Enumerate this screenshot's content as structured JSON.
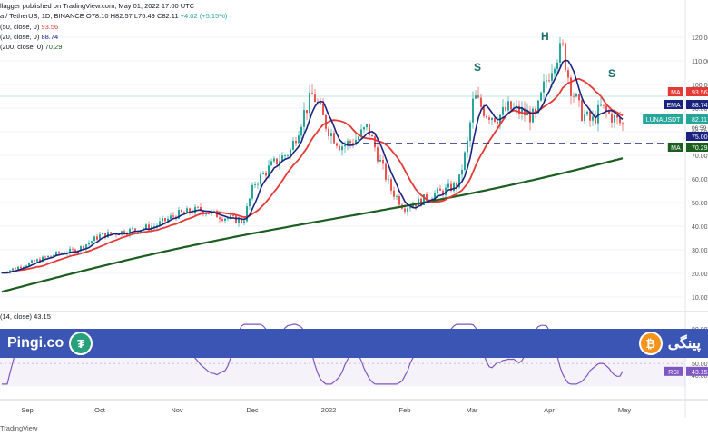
{
  "header": {
    "publisher": "llagger published on TradingView.com, May 01, 2022 17:00 UTC",
    "symbol": "a / TetherUS, 1D, BINANCE",
    "o": "O78.10",
    "h": "H82.57",
    "l": "L76.49",
    "c": "C82.11",
    "chg": "+4.02 (+5.15%)"
  },
  "indicators": {
    "ma50": {
      "label": "(50, close, 0)",
      "value": "93.56"
    },
    "ema20": {
      "label": "(20, close, 0)",
      "value": "88.74"
    },
    "ma200": {
      "label": "(200, close, 0)",
      "value": "70.29"
    },
    "rsi": {
      "label": "(14, close)",
      "value": "43.15"
    }
  },
  "price_axis": [
    "120.00",
    "110.00",
    "100.00",
    "90.00",
    "80.00",
    "70.00",
    "60.00",
    "50.00",
    "40.00",
    "30.00",
    "20.00",
    "10.00"
  ],
  "rsi_axis": [
    "80.00",
    "70.00",
    "60.00",
    "50.00",
    "40.00"
  ],
  "x_axis": [
    "Sep",
    "Oct",
    "Nov",
    "Dec",
    "2022",
    "Feb",
    "Mar",
    "Apr",
    "May"
  ],
  "tags": {
    "ma_red": {
      "label": "MA",
      "value": "93.56",
      "color": "#e53935"
    },
    "ema": {
      "label": "EMA",
      "value": "88.74",
      "color": "#1a237e"
    },
    "last": {
      "label": "LUNAUSDT",
      "value": "82.11",
      "sub": "06:59",
      "color": "#26a69a"
    },
    "line": {
      "value": "75.00",
      "color": "#1a237e"
    },
    "ma_green": {
      "label": "MA",
      "value": "70.29",
      "color": "#1b5e20"
    },
    "rsi": {
      "label": "RSI",
      "value": "43.15"
    }
  },
  "pattern_labels": [
    "S",
    "H",
    "S"
  ],
  "banner": {
    "left_text": "Pingi.co",
    "left_coin": "₮",
    "right_text": "پینگی",
    "right_coin": "₿"
  },
  "footer": "TradingView",
  "colors": {
    "up": "#26a69a",
    "down": "#ef5350",
    "ma50": "#e53935",
    "ema20": "#1a237e",
    "ma200": "#1b5e20",
    "rsi": "#7e57c2",
    "banner": "#3b55b5"
  },
  "chart_data": {
    "type": "candlestick",
    "x": [
      "Sep",
      "Oct",
      "Nov",
      "Dec",
      "2022",
      "Feb",
      "Mar",
      "Apr",
      "May"
    ],
    "ylim": [
      0,
      125
    ],
    "support_line": 75,
    "key_points": [
      {
        "x": "Sep",
        "close": 23
      },
      {
        "x": "Oct",
        "close": 38
      },
      {
        "x": "Nov",
        "close": 46
      },
      {
        "x": "Dec",
        "close": 70
      },
      {
        "x": "2022",
        "close": 88
      },
      {
        "x": "Feb",
        "close": 50
      },
      {
        "x": "Mar",
        "close": 96
      },
      {
        "x": "Apr",
        "close": 112
      },
      {
        "x": "May",
        "close": 82
      }
    ],
    "series": [
      {
        "name": "MA (50)",
        "last": 93.56
      },
      {
        "name": "EMA (20)",
        "last": 88.74
      },
      {
        "name": "MA (200)",
        "last": 70.29
      },
      {
        "name": "RSI (14)",
        "last": 43.15,
        "ylim": [
          30,
          90
        ]
      }
    ]
  }
}
